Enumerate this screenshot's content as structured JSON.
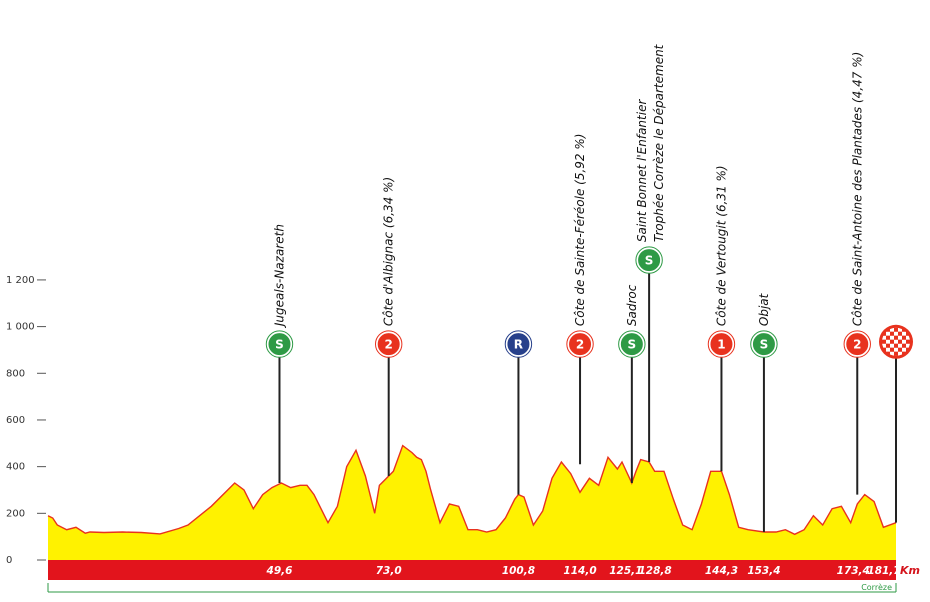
{
  "chart_data": {
    "type": "area",
    "title": "",
    "xlabel": "",
    "ylabel": "",
    "x_unit": "Km",
    "region": "Corrèze",
    "xlim": [
      0,
      181.7
    ],
    "ylim": [
      0,
      1300
    ],
    "y_ticks": [
      {
        "value": 0,
        "label": "0"
      },
      {
        "value": 200,
        "label": "200"
      },
      {
        "value": 400,
        "label": "400"
      },
      {
        "value": 600,
        "label": "600"
      },
      {
        "value": 800,
        "label": "800"
      },
      {
        "value": 1000,
        "label": "1 000"
      },
      {
        "value": 1200,
        "label": "1 200"
      }
    ],
    "profile": {
      "x": [
        0,
        1,
        2,
        4,
        6,
        8,
        9,
        12,
        16,
        20,
        24,
        28,
        30,
        35,
        40,
        42,
        44,
        46,
        48,
        50,
        52,
        54,
        55.5,
        57,
        60,
        62,
        64,
        66,
        68,
        70,
        71,
        73,
        74,
        76,
        78,
        79,
        80,
        81,
        82,
        84,
        86,
        88,
        90,
        92,
        94,
        96,
        98,
        100,
        100.8,
        102,
        104,
        106,
        108,
        110,
        112,
        114,
        116,
        118,
        120,
        122,
        123,
        125.1,
        126,
        127,
        128.8,
        130,
        132,
        134,
        136,
        138,
        140,
        142,
        144.3,
        146,
        148,
        150,
        153.4,
        156,
        158,
        160,
        162,
        164,
        166,
        168,
        170,
        172,
        173.4,
        175,
        177,
        179,
        181.7
      ],
      "y": [
        190,
        180,
        150,
        130,
        140,
        115,
        120,
        118,
        120,
        118,
        112,
        135,
        150,
        230,
        330,
        300,
        220,
        280,
        310,
        330,
        310,
        320,
        320,
        280,
        160,
        230,
        400,
        470,
        360,
        200,
        320,
        360,
        380,
        490,
        460,
        440,
        430,
        380,
        300,
        160,
        240,
        230,
        130,
        130,
        120,
        130,
        180,
        260,
        280,
        270,
        150,
        210,
        350,
        420,
        370,
        290,
        350,
        320,
        440,
        390,
        420,
        330,
        380,
        430,
        420,
        380,
        380,
        260,
        150,
        130,
        240,
        380,
        380,
        280,
        140,
        130,
        120,
        120,
        130,
        110,
        130,
        190,
        150,
        220,
        230,
        160,
        240,
        280,
        250,
        140,
        160
      ]
    },
    "km_markers": [
      {
        "x": 49.6,
        "label": "49,6"
      },
      {
        "x": 73.0,
        "label": "73,0"
      },
      {
        "x": 100.8,
        "label": "100,8"
      },
      {
        "x": 114.0,
        "label": "114,0"
      },
      {
        "x": 125.1,
        "label": "125,1"
      },
      {
        "x": 128.8,
        "label": "128,8"
      },
      {
        "x": 144.3,
        "label": "144,3"
      },
      {
        "x": 153.4,
        "label": "153,4"
      },
      {
        "x": 173.4,
        "label": "173,4"
      },
      {
        "x": 181.7,
        "label": "181,7"
      }
    ],
    "points": [
      {
        "id": "jugeals-nazareth",
        "x": 49.6,
        "elev": 330,
        "badge": "S",
        "color": "#2e9a45",
        "label": "Jugeals-Nazareth",
        "badge_elev": 925
      },
      {
        "id": "cote-albignac",
        "x": 73.0,
        "elev": 360,
        "badge": "2",
        "color": "#e8321e",
        "label": "Côte d'Albignac (6,34 %)",
        "badge_elev": 925
      },
      {
        "id": "ravito",
        "x": 100.8,
        "elev": 280,
        "badge": "R",
        "color": "#27408b",
        "label": "",
        "badge_elev": 925
      },
      {
        "id": "cote-sainte-fereole",
        "x": 114.0,
        "elev": 410,
        "badge": "2",
        "color": "#e8321e",
        "label": "Côte de Sainte-Féréole (5,92 %)",
        "badge_elev": 925
      },
      {
        "id": "sadroc",
        "x": 125.1,
        "elev": 330,
        "badge": "S",
        "color": "#2e9a45",
        "label": "Sadroc",
        "badge_elev": 925
      },
      {
        "id": "saint-bonnet",
        "x": 128.8,
        "elev": 420,
        "badge": "S",
        "color": "#2e9a45",
        "label": "Saint Bonnet l'Enfantier",
        "label2": "Trophée Corrèze le Département",
        "badge_elev": 1285
      },
      {
        "id": "cote-vertougit",
        "x": 144.3,
        "elev": 380,
        "badge": "1",
        "color": "#e8321e",
        "label": "Côte de Vertougit (6,31 %)",
        "badge_elev": 925
      },
      {
        "id": "objat",
        "x": 153.4,
        "elev": 120,
        "badge": "S",
        "color": "#2e9a45",
        "label": "Objat",
        "badge_elev": 925
      },
      {
        "id": "cote-saint-antoine",
        "x": 173.4,
        "elev": 280,
        "badge": "2",
        "color": "#e8321e",
        "label": "Côte de Saint-Antoine des Plantades (4,47 %)",
        "badge_elev": 925
      },
      {
        "id": "arrivee",
        "x": 181.7,
        "elev": 160,
        "badge": "finish",
        "color": "#e8321e",
        "label": "",
        "badge_elev": 935
      }
    ]
  },
  "colors": {
    "profile_fill": "#fff200",
    "profile_stroke": "#e8321e",
    "km_bar": "#e2141c",
    "region_line": "#2e9a45"
  }
}
